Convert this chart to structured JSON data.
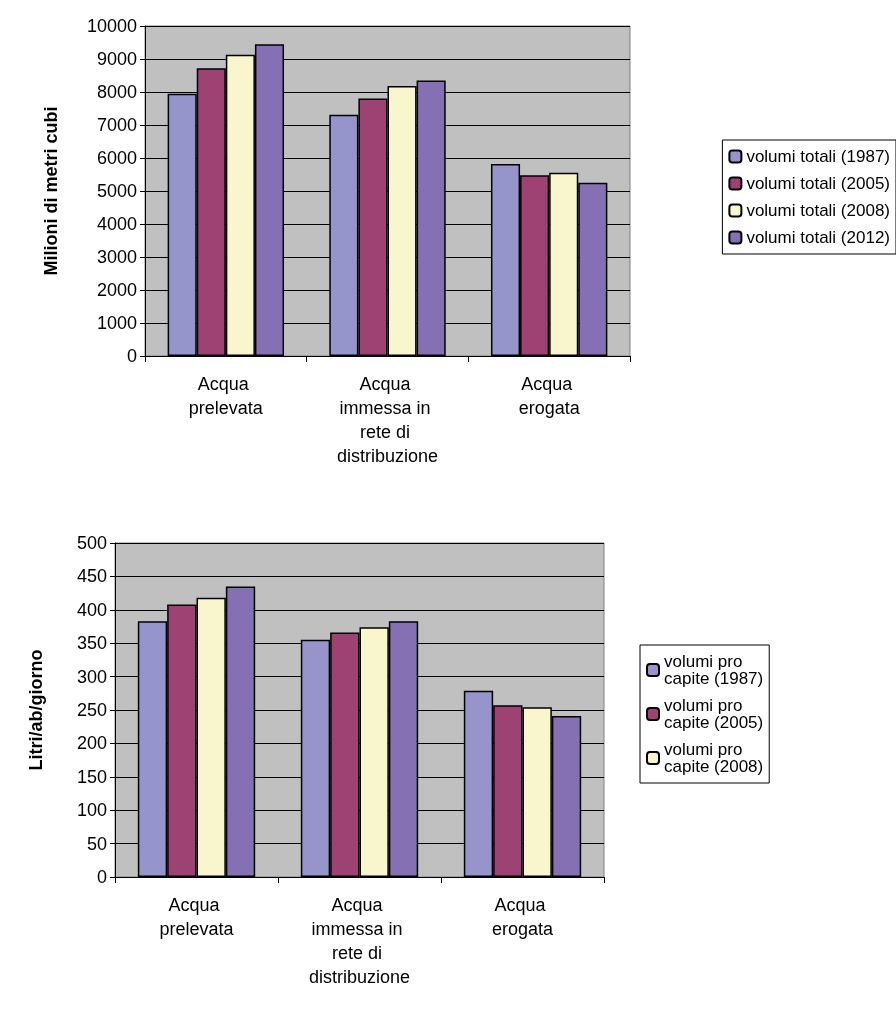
{
  "chart_data": [
    {
      "type": "bar",
      "ylabel": "Milioni di metri cubi",
      "categories": [
        "Acqua prelevata",
        "Acqua immessa in rete di distribuzione",
        "Acqua erogata"
      ],
      "series": [
        {
          "name": "volumi totali (1987)",
          "color": "#9595cb",
          "values": [
            7950,
            7310,
            5820
          ]
        },
        {
          "name": "volumi totali (2005)",
          "color": "#9e4274",
          "values": [
            8720,
            7800,
            5480
          ]
        },
        {
          "name": "volumi totali (2008)",
          "color": "#f9f5cc",
          "values": [
            9130,
            8180,
            5550
          ]
        },
        {
          "name": "volumi totali (2012)",
          "color": "#8470b2",
          "values": [
            9450,
            8350,
            5250
          ]
        }
      ],
      "ylim": [
        0,
        10000
      ],
      "yticks": [
        0,
        1000,
        2000,
        3000,
        4000,
        5000,
        6000,
        7000,
        8000,
        9000,
        10000
      ],
      "grid": "y",
      "legend": "right"
    },
    {
      "type": "bar",
      "ylabel": "Litri/ab/giorno",
      "categories": [
        "Acqua prelevata",
        "Acqua immessa in rete di distribuzione",
        "Acqua erogata"
      ],
      "series": [
        {
          "name": "volumi pro capite (1987)",
          "color": "#9595cb",
          "values": [
            383,
            355,
            279
          ]
        },
        {
          "name": "volumi pro capite (2005)",
          "color": "#9e4274",
          "values": [
            408,
            366,
            257
          ]
        },
        {
          "name": "volumi pro capite (2008)",
          "color": "#f9f5cc",
          "values": [
            418,
            374,
            254
          ]
        },
        {
          "color": "#8470b2",
          "values": [
            435,
            383,
            241
          ]
        }
      ],
      "ylim": [
        0,
        500
      ],
      "yticks": [
        0,
        50,
        100,
        150,
        200,
        250,
        300,
        350,
        400,
        450,
        500
      ],
      "grid": "y",
      "legend": "right"
    }
  ]
}
